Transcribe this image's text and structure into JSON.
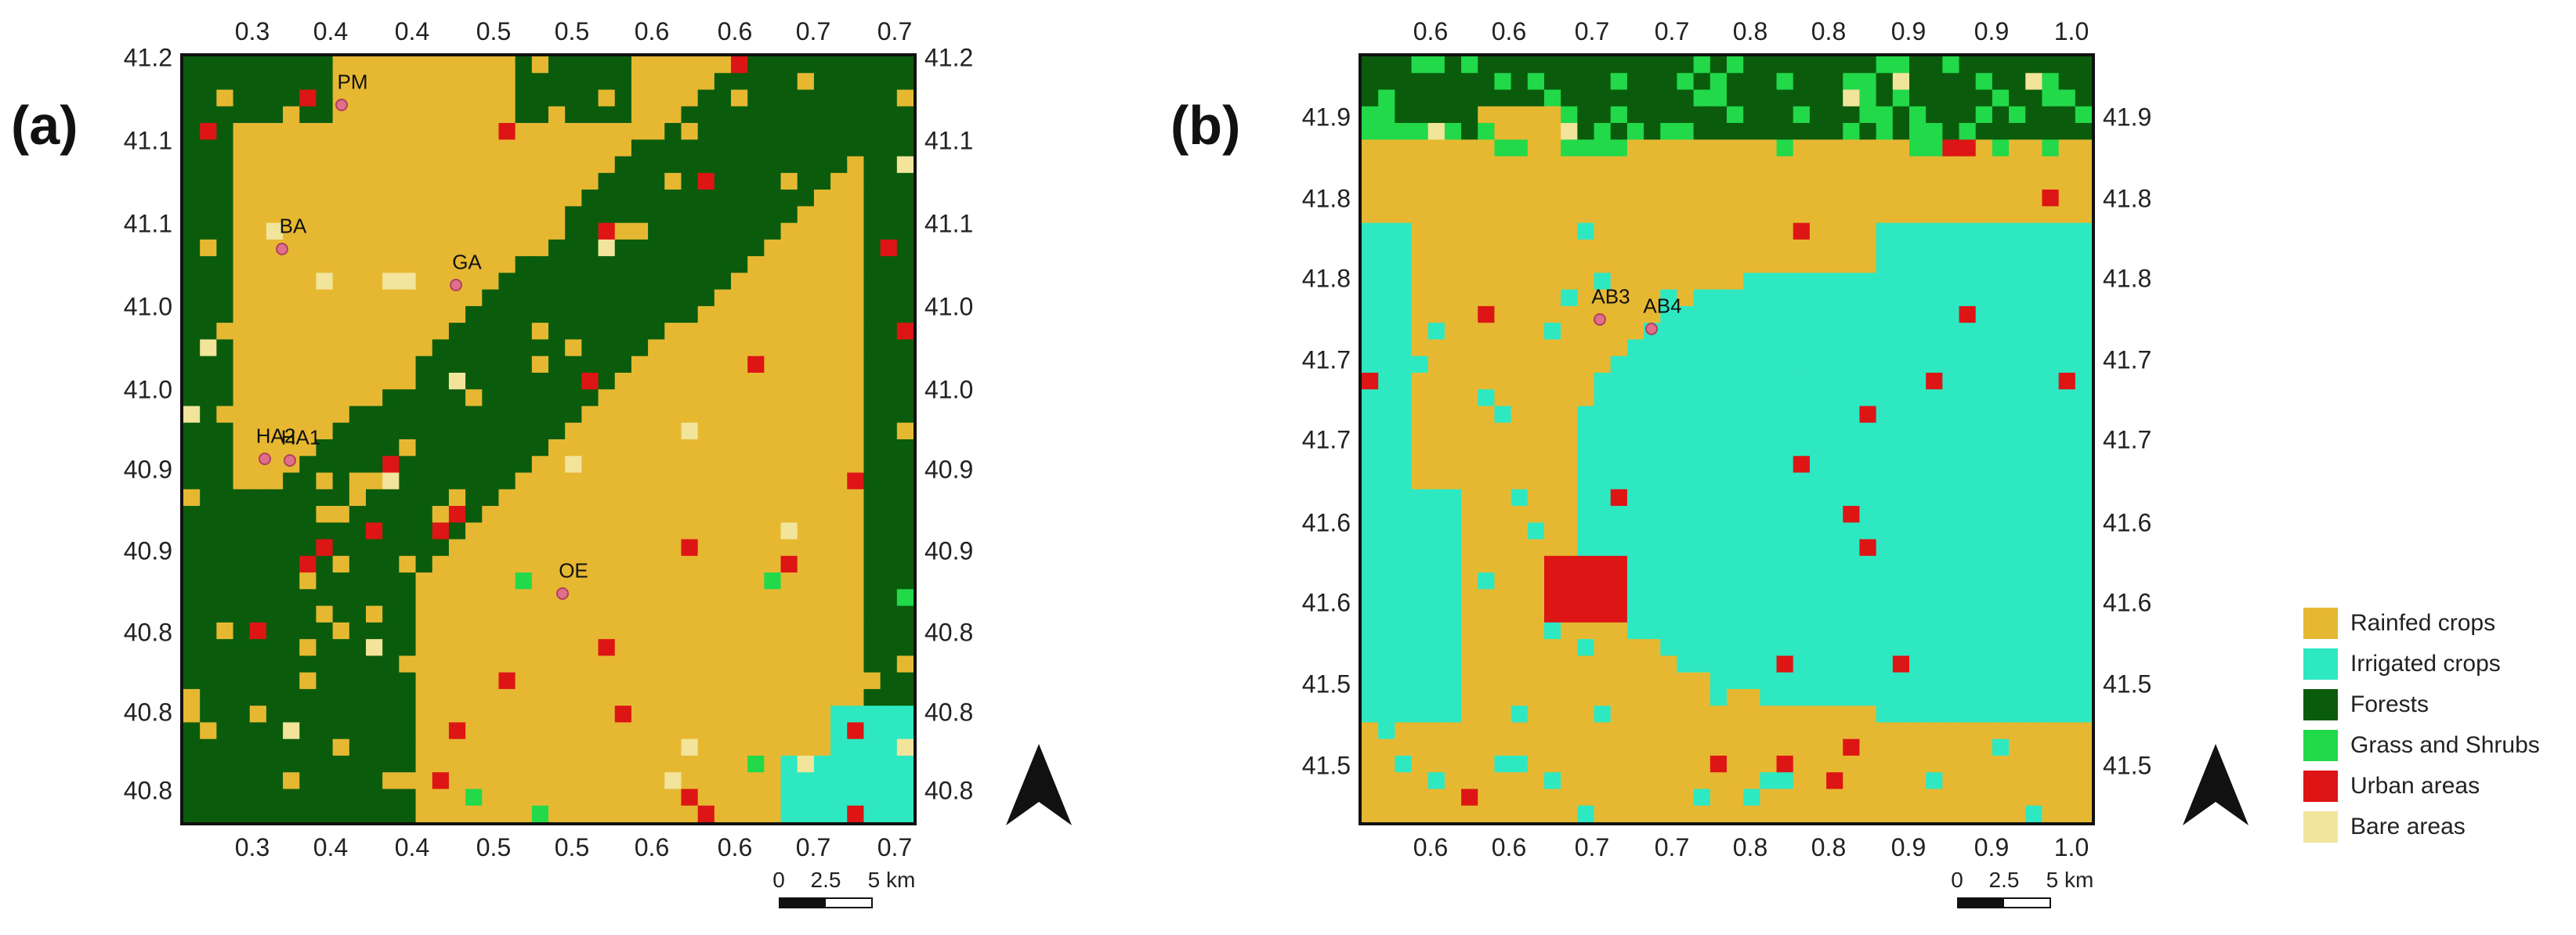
{
  "panels": [
    {
      "label": "(a)",
      "x_ticks": [
        "0.3",
        "0.4",
        "0.4",
        "0.5",
        "0.5",
        "0.6",
        "0.6",
        "0.7",
        "0.7"
      ],
      "y_ticks": [
        "41.2",
        "41.1",
        "41.1",
        "41.0",
        "41.0",
        "40.9",
        "40.9",
        "40.8",
        "40.8",
        "40.8"
      ],
      "sites": [
        {
          "name": "PM"
        },
        {
          "name": "BA"
        },
        {
          "name": "GA"
        },
        {
          "name": "HA2"
        },
        {
          "name": "HA1"
        },
        {
          "name": "OE"
        }
      ],
      "scale": {
        "labels": [
          "0",
          "2.5",
          "5 km"
        ]
      },
      "grid": {
        "cols": 44,
        "rows": 46,
        "seed": 7,
        "description_classes": "R,F,G,U,B,I"
      }
    },
    {
      "label": "(b)",
      "x_ticks": [
        "0.6",
        "0.6",
        "0.7",
        "0.7",
        "0.8",
        "0.8",
        "0.9",
        "0.9",
        "1.0"
      ],
      "y_ticks": [
        "41.9",
        "41.8",
        "41.8",
        "41.7",
        "41.7",
        "41.6",
        "41.6",
        "41.5",
        "41.5"
      ],
      "sites": [
        {
          "name": "AB3"
        },
        {
          "name": "AB4"
        }
      ],
      "scale": {
        "labels": [
          "0",
          "2.5",
          "5 km"
        ]
      },
      "grid": {
        "cols": 44,
        "rows": 46,
        "seed": 11,
        "description_classes": "R,I,F,G,U,B"
      }
    }
  ],
  "legend": [
    {
      "label": "Rainfed crops",
      "color": "#e6b832"
    },
    {
      "label": "Irrigated crops",
      "color": "#2ee8c2"
    },
    {
      "label": "Forests",
      "color": "#0a5c0c"
    },
    {
      "label": "Grass and Shrubs",
      "color": "#22d94a"
    },
    {
      "label": "Urban areas",
      "color": "#dd1515"
    },
    {
      "label": "Bare areas",
      "color": "#f2e49a"
    }
  ]
}
